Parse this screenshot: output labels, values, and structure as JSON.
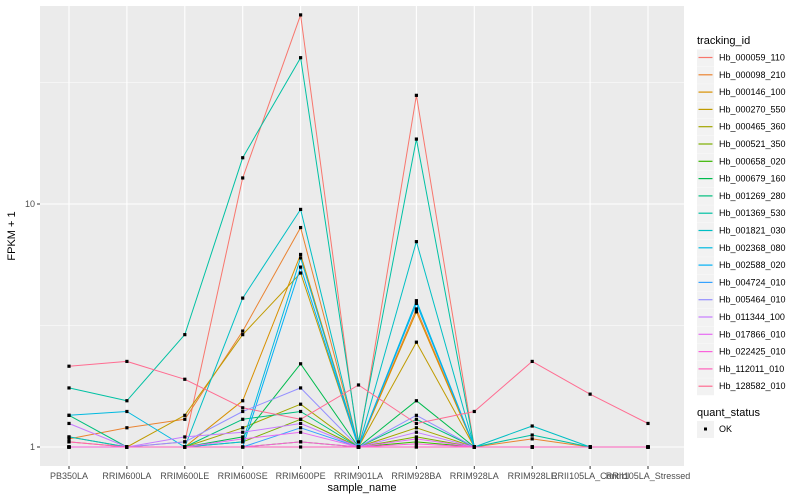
{
  "chart_data": {
    "type": "line",
    "xlabel": "sample_name",
    "ylabel": "FPKM + 1",
    "y_scale": "log10",
    "ylim": [
      0.9,
      75
    ],
    "y_ticks": [
      {
        "value": 1,
        "label": "1"
      },
      {
        "value": 10,
        "label": "10"
      }
    ],
    "grid": true,
    "legend_position": "right",
    "categories": [
      "PB350LA",
      "RRIM600LA",
      "RRIM600LE",
      "RRIM600SE",
      "RRIM600PE",
      "RRIM901LA",
      "RRIM928BA",
      "RRIM928LA",
      "RRIM928LE",
      "RRII105LA_Control",
      "RRII105LA_Stressed"
    ],
    "legend_title": "tracking_id",
    "series": [
      {
        "name": "Hb_000059_110",
        "color": "#F8766D",
        "values": [
          1.0,
          1.0,
          1.05,
          12.8,
          60.0,
          1.0,
          28.0,
          1.0,
          1.0,
          1.0,
          1.0
        ]
      },
      {
        "name": "Hb_000098_210",
        "color": "#EA8331",
        "values": [
          1.08,
          1.2,
          1.3,
          3.0,
          8.0,
          1.0,
          3.7,
          1.0,
          1.08,
          1.0,
          1.0
        ]
      },
      {
        "name": "Hb_000146_100",
        "color": "#D89000",
        "values": [
          1.05,
          1.0,
          1.0,
          1.55,
          6.2,
          1.0,
          3.6,
          1.0,
          1.0,
          1.0,
          1.0
        ]
      },
      {
        "name": "Hb_000270_550",
        "color": "#C09B00",
        "values": [
          1.1,
          1.0,
          1.35,
          2.9,
          5.2,
          1.0,
          2.7,
          1.0,
          1.0,
          1.0,
          1.0
        ]
      },
      {
        "name": "Hb_000465_360",
        "color": "#A3A500",
        "values": [
          1.0,
          1.0,
          1.0,
          1.2,
          1.5,
          1.0,
          1.2,
          1.0,
          1.0,
          1.0,
          1.0
        ]
      },
      {
        "name": "Hb_000521_350",
        "color": "#7CAE00",
        "values": [
          1.0,
          1.0,
          1.0,
          1.05,
          1.3,
          1.0,
          1.1,
          1.0,
          1.0,
          1.0,
          1.0
        ]
      },
      {
        "name": "Hb_000658_020",
        "color": "#39B600",
        "values": [
          1.0,
          1.0,
          1.0,
          1.0,
          1.05,
          1.0,
          1.05,
          1.0,
          1.0,
          1.0,
          1.0
        ]
      },
      {
        "name": "Hb_000679_160",
        "color": "#00BB4E",
        "values": [
          1.0,
          1.0,
          1.0,
          1.1,
          2.2,
          1.0,
          1.55,
          1.0,
          1.0,
          1.0,
          1.0
        ]
      },
      {
        "name": "Hb_001269_280",
        "color": "#00BF7D",
        "values": [
          1.35,
          1.0,
          1.0,
          1.3,
          1.4,
          1.0,
          1.3,
          1.0,
          1.0,
          1.0,
          1.0
        ]
      },
      {
        "name": "Hb_001369_530",
        "color": "#00C1A3",
        "values": [
          1.75,
          1.55,
          2.9,
          15.5,
          40.0,
          1.05,
          18.5,
          1.0,
          1.12,
          1.0,
          1.0
        ]
      },
      {
        "name": "Hb_001821_030",
        "color": "#00BFC4",
        "values": [
          1.1,
          1.0,
          1.0,
          4.1,
          9.5,
          1.0,
          7.0,
          1.0,
          1.22,
          1.0,
          1.0
        ]
      },
      {
        "name": "Hb_002368_080",
        "color": "#00BAE0",
        "values": [
          1.35,
          1.4,
          1.0,
          1.05,
          6.0,
          1.0,
          4.0,
          1.0,
          1.0,
          1.0,
          1.0
        ]
      },
      {
        "name": "Hb_002588_020",
        "color": "#00B0F6",
        "values": [
          1.0,
          1.0,
          1.0,
          1.0,
          5.5,
          1.0,
          3.9,
          1.0,
          1.0,
          1.0,
          1.0
        ]
      },
      {
        "name": "Hb_004724_010",
        "color": "#35A2FF",
        "values": [
          1.0,
          1.0,
          1.0,
          1.0,
          1.2,
          1.0,
          1.0,
          1.0,
          1.0,
          1.0,
          1.0
        ]
      },
      {
        "name": "Hb_005464_010",
        "color": "#9590FF",
        "values": [
          1.0,
          1.0,
          1.05,
          1.4,
          1.75,
          1.0,
          1.35,
          1.0,
          1.0,
          1.0,
          1.0
        ]
      },
      {
        "name": "Hb_011344_100",
        "color": "#C77CFF",
        "values": [
          1.25,
          1.0,
          1.1,
          1.15,
          1.25,
          1.0,
          1.15,
          1.0,
          1.0,
          1.0,
          1.0
        ]
      },
      {
        "name": "Hb_017866_010",
        "color": "#E76BF3",
        "values": [
          1.0,
          1.0,
          1.0,
          1.08,
          1.15,
          1.0,
          1.08,
          1.0,
          1.0,
          1.0,
          1.0
        ]
      },
      {
        "name": "Hb_022425_010",
        "color": "#FA62DB",
        "values": [
          1.0,
          1.0,
          1.0,
          1.0,
          1.05,
          1.0,
          1.03,
          1.0,
          1.0,
          1.0,
          1.0
        ]
      },
      {
        "name": "Hb_112011_010",
        "color": "#FF62BC",
        "values": [
          1.05,
          1.0,
          1.0,
          1.0,
          1.0,
          1.0,
          1.0,
          1.0,
          1.0,
          1.0,
          1.0
        ]
      },
      {
        "name": "Hb_128582_010",
        "color": "#FF6C91",
        "values": [
          2.15,
          2.25,
          1.9,
          1.45,
          1.3,
          1.8,
          1.25,
          1.4,
          2.25,
          1.65,
          1.25
        ]
      }
    ],
    "shape_legend": {
      "title": "quant_status",
      "items": [
        {
          "label": "OK",
          "symbol": "square-point"
        }
      ]
    }
  }
}
